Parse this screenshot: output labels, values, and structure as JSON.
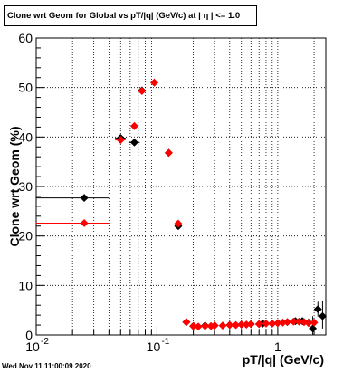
{
  "chart_data": {
    "type": "scatter",
    "title": "Clone wrt Geom for Global vs pT/|q| (GeV/c) at |  η | <= 1.0",
    "xlabel": "pT/|q| (GeV/c)",
    "ylabel": "Clone wrt Geom (%)",
    "xscale": "log",
    "xlim": [
      0.01,
      2.5
    ],
    "ylim": [
      0,
      60
    ],
    "x_ticks": [
      "10",
      "10",
      "1"
    ],
    "x_tick_exponents": [
      "-2",
      "-1",
      ""
    ],
    "y_ticks": [
      "0",
      "10",
      "20",
      "30",
      "40",
      "50",
      "60"
    ],
    "grid": true,
    "legend": "none",
    "series": [
      {
        "color": "#000000",
        "points": [
          {
            "x": 0.025,
            "y": 27.7,
            "xerr": [
              0.015,
              0.015
            ]
          },
          {
            "x": 0.05,
            "y": 39.8,
            "xerr": [
              0.005,
              0.005
            ]
          },
          {
            "x": 0.065,
            "y": 38.9,
            "xerr": [
              0.007,
              0.007
            ]
          },
          {
            "x": 0.075,
            "y": 49.4
          },
          {
            "x": 0.095,
            "y": 51.0
          },
          {
            "x": 0.125,
            "y": 36.8
          },
          {
            "x": 0.15,
            "y": 22.0
          },
          {
            "x": 0.175,
            "y": 2.6
          },
          {
            "x": 0.2,
            "y": 1.8
          },
          {
            "x": 0.25,
            "y": 1.9
          },
          {
            "x": 0.3,
            "y": 1.9
          },
          {
            "x": 0.4,
            "y": 2.0
          },
          {
            "x": 0.5,
            "y": 2.1
          },
          {
            "x": 0.6,
            "y": 2.2
          },
          {
            "x": 0.75,
            "y": 2.3
          },
          {
            "x": 0.9,
            "y": 2.3
          },
          {
            "x": 1.0,
            "y": 2.4
          },
          {
            "x": 1.2,
            "y": 2.6
          },
          {
            "x": 1.4,
            "y": 2.8
          },
          {
            "x": 1.6,
            "y": 2.8
          },
          {
            "x": 1.8,
            "y": 2.5
          },
          {
            "x": 1.95,
            "y": 1.3,
            "yerr": [
              1.3,
              2.5
            ]
          },
          {
            "x": 2.15,
            "y": 5.2,
            "yerr": [
              1.5,
              1.5
            ]
          },
          {
            "x": 2.35,
            "y": 3.8,
            "yerr": [
              2.5,
              3.0
            ]
          }
        ]
      },
      {
        "color": "#ff0000",
        "points": [
          {
            "x": 0.025,
            "y": 22.6,
            "xerr": [
              0.015,
              0.015
            ]
          },
          {
            "x": 0.05,
            "y": 39.4,
            "xerr": [
              0.005,
              0.005
            ]
          },
          {
            "x": 0.065,
            "y": 42.2
          },
          {
            "x": 0.075,
            "y": 49.3
          },
          {
            "x": 0.095,
            "y": 51.0
          },
          {
            "x": 0.125,
            "y": 36.8
          },
          {
            "x": 0.15,
            "y": 22.5
          },
          {
            "x": 0.175,
            "y": 2.6
          },
          {
            "x": 0.2,
            "y": 1.8
          },
          {
            "x": 0.22,
            "y": 1.7
          },
          {
            "x": 0.25,
            "y": 1.8
          },
          {
            "x": 0.28,
            "y": 1.8
          },
          {
            "x": 0.3,
            "y": 1.9
          },
          {
            "x": 0.35,
            "y": 1.9
          },
          {
            "x": 0.4,
            "y": 2.0
          },
          {
            "x": 0.45,
            "y": 2.0
          },
          {
            "x": 0.5,
            "y": 2.1
          },
          {
            "x": 0.55,
            "y": 2.1
          },
          {
            "x": 0.6,
            "y": 2.2
          },
          {
            "x": 0.7,
            "y": 2.2
          },
          {
            "x": 0.8,
            "y": 2.3
          },
          {
            "x": 0.9,
            "y": 2.3
          },
          {
            "x": 1.0,
            "y": 2.4
          },
          {
            "x": 1.1,
            "y": 2.5
          },
          {
            "x": 1.2,
            "y": 2.6
          },
          {
            "x": 1.35,
            "y": 2.7
          },
          {
            "x": 1.5,
            "y": 2.7
          },
          {
            "x": 1.65,
            "y": 2.6
          },
          {
            "x": 1.8,
            "y": 2.4
          },
          {
            "x": 2.0,
            "y": 2.5
          }
        ]
      }
    ]
  },
  "footer": {
    "datestamp": "Wed Nov 11 11:00:09 2020"
  }
}
